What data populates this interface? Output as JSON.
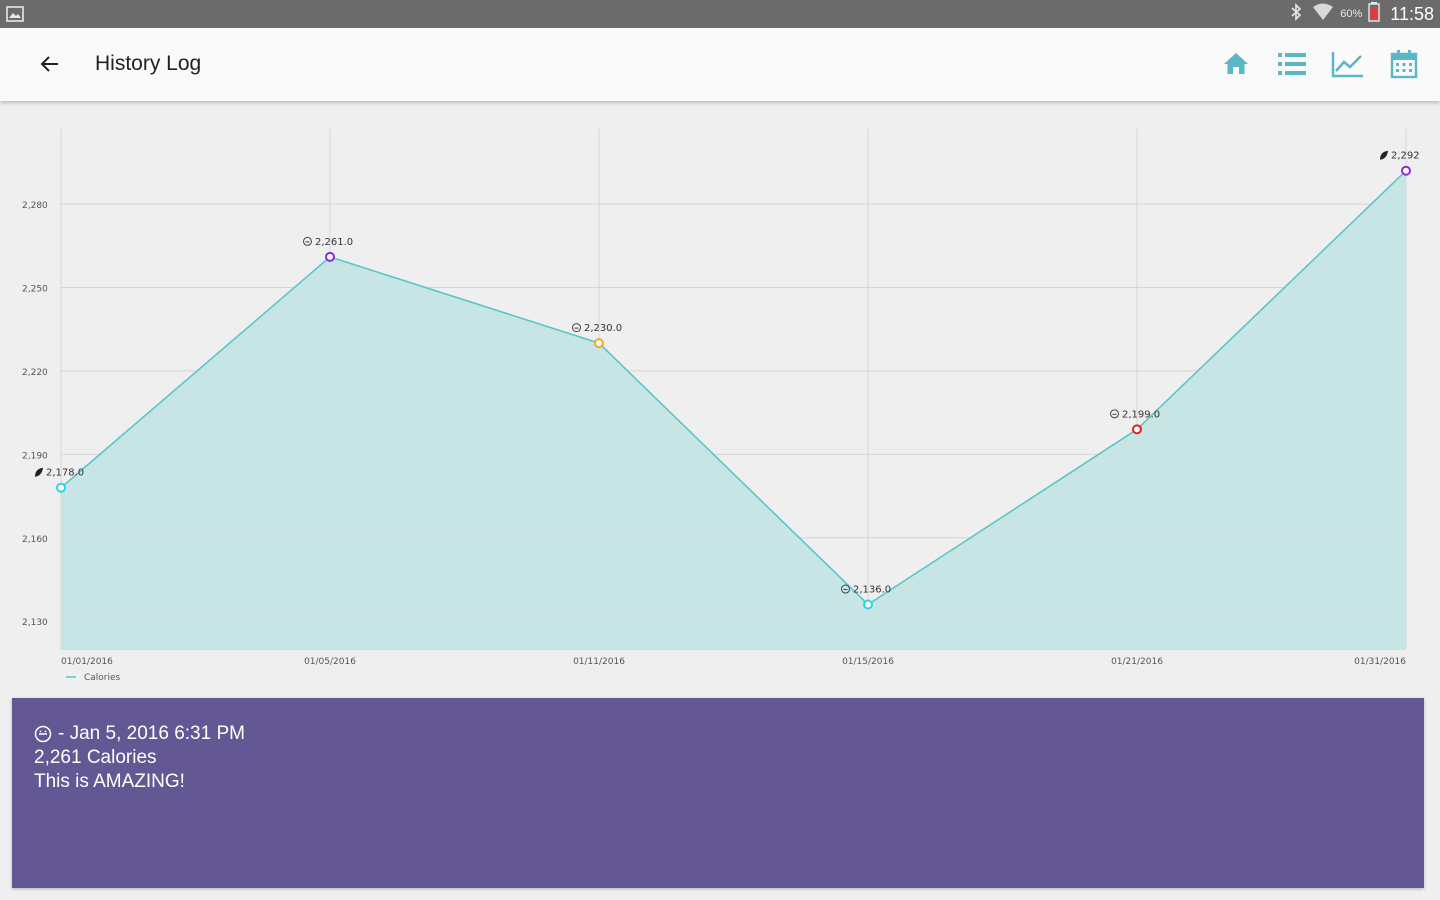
{
  "status_bar": {
    "battery_text": "60%",
    "time": "11:58",
    "icons": [
      "gallery-icon",
      "bluetooth-icon",
      "wifi-icon",
      "battery-icon"
    ]
  },
  "app_bar": {
    "title": "History Log",
    "back_icon": "arrow-left-icon",
    "actions": [
      "home-icon",
      "list-icon",
      "trend-chart-icon",
      "calendar-icon"
    ],
    "accent_color": "#5bb6c6"
  },
  "chart_data": {
    "type": "area",
    "categories": [
      "01/01/2016",
      "01/05/2016",
      "01/11/2016",
      "01/15/2016",
      "01/21/2016",
      "01/31/2016"
    ],
    "values": [
      2178,
      2261,
      2230,
      2136,
      2199,
      2292
    ],
    "point_labels": [
      "2,178.0",
      "2,261.0",
      "2,230.0",
      "2,136.0",
      "2,199.0",
      "2,292"
    ],
    "point_marker_colors": [
      "#29d5e6",
      "#8a2be2",
      "#f5a623",
      "#29d5e6",
      "#e02424",
      "#8a2be2"
    ],
    "label_icons": [
      "leaf-icon",
      "face-icon",
      "face-icon",
      "face-icon",
      "face-icon",
      "leaf-icon"
    ],
    "y_ticks": [
      2130,
      2160,
      2190,
      2220,
      2250,
      2280
    ],
    "y_tick_labels": [
      "2,130",
      "2,160",
      "2,190",
      "2,220",
      "2,250",
      "2,280"
    ],
    "ylim": [
      2120,
      2307
    ],
    "grid": true,
    "legend": "bottom-left",
    "series": [
      {
        "name": "Calories",
        "values": [
          2178,
          2261,
          2230,
          2136,
          2199,
          2292
        ]
      }
    ],
    "line_color": "#5cc6c6",
    "fill_color": "#c5e4e4"
  },
  "details": {
    "icon": "face-icon",
    "line1": "- Jan 5, 2016 6:31 PM",
    "line2": "2,261 Calories",
    "line3": "This is AMAZING!",
    "background": "#635894"
  }
}
